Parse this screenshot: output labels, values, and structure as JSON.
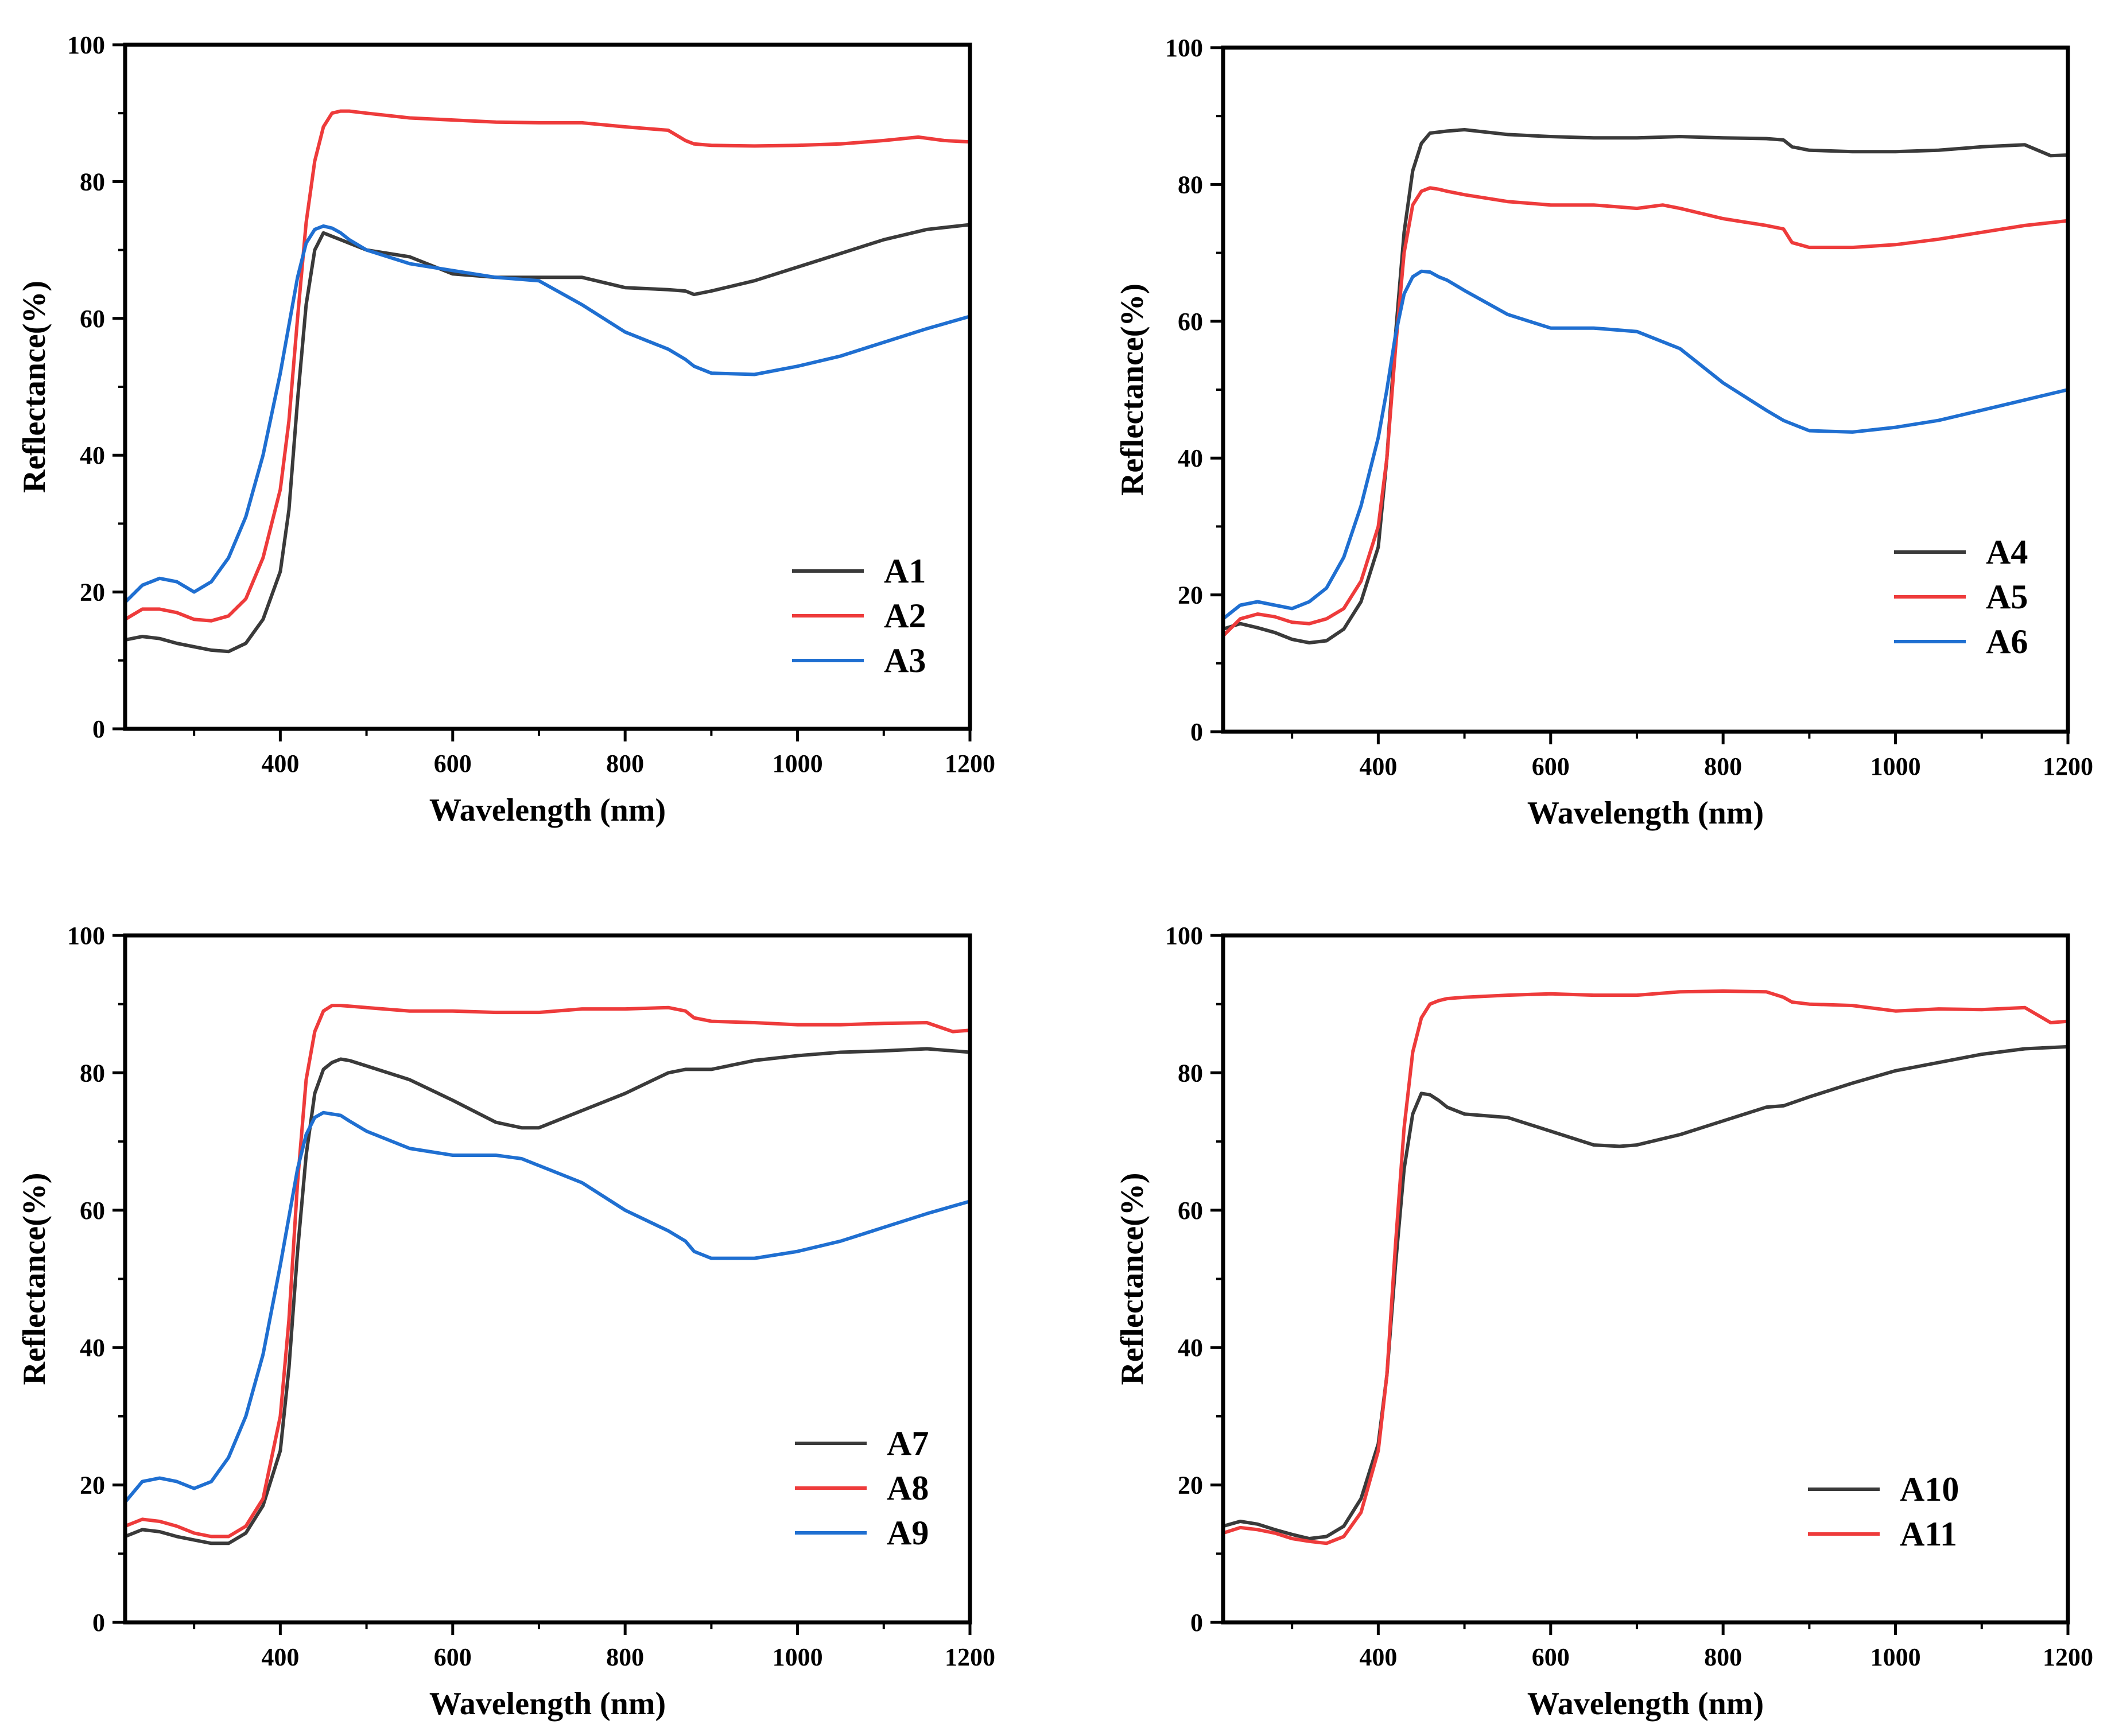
{
  "colors": {
    "black": "#3a3a3a",
    "red": "#ee3b3b",
    "blue": "#1f6fd1"
  },
  "chart_data": [
    {
      "type": "line",
      "xlabel": "Wavelength (nm)",
      "ylabel": "Reflectance(%)",
      "xlim": [
        220,
        1200
      ],
      "ylim": [
        0,
        100
      ],
      "xticks": [
        "400",
        "600",
        "800",
        "1000",
        "1200"
      ],
      "yticks": [
        "0",
        "20",
        "40",
        "60",
        "80",
        "100"
      ],
      "legend_position": "lower-right",
      "series": [
        {
          "name": "A1",
          "color": "black",
          "x": [
            220,
            240,
            260,
            280,
            300,
            320,
            340,
            360,
            380,
            400,
            410,
            420,
            430,
            440,
            450,
            460,
            470,
            480,
            500,
            550,
            600,
            650,
            700,
            750,
            800,
            850,
            870,
            880,
            900,
            950,
            1000,
            1050,
            1100,
            1150,
            1200
          ],
          "y": [
            13,
            13.5,
            13.2,
            12.5,
            12,
            11.5,
            11.3,
            12.5,
            16,
            23,
            32,
            48,
            62,
            70,
            72.5,
            72,
            71.5,
            71,
            70,
            69,
            66.5,
            66,
            66,
            66,
            64.5,
            64.2,
            64,
            63.5,
            64,
            65.5,
            67.5,
            69.5,
            71.5,
            73,
            73.7
          ]
        },
        {
          "name": "A2",
          "color": "red",
          "x": [
            220,
            240,
            260,
            280,
            300,
            320,
            340,
            360,
            380,
            400,
            410,
            420,
            430,
            440,
            450,
            460,
            470,
            480,
            500,
            550,
            600,
            650,
            700,
            750,
            800,
            850,
            870,
            880,
            900,
            950,
            1000,
            1050,
            1100,
            1140,
            1170,
            1200
          ],
          "y": [
            16,
            17.5,
            17.5,
            17,
            16,
            15.8,
            16.5,
            19,
            25,
            35,
            45,
            60,
            74,
            83,
            88,
            90,
            90.3,
            90.3,
            90,
            89.3,
            89,
            88.7,
            88.6,
            88.6,
            88,
            87.5,
            86,
            85.5,
            85.3,
            85.2,
            85.3,
            85.5,
            86,
            86.5,
            86,
            85.8
          ]
        },
        {
          "name": "A3",
          "color": "blue",
          "x": [
            220,
            240,
            260,
            280,
            300,
            320,
            340,
            360,
            380,
            400,
            410,
            420,
            430,
            440,
            450,
            460,
            470,
            480,
            500,
            550,
            600,
            650,
            700,
            750,
            800,
            850,
            870,
            880,
            900,
            950,
            1000,
            1050,
            1100,
            1150,
            1200
          ],
          "y": [
            18.5,
            21,
            22,
            21.5,
            20,
            21.5,
            25,
            31,
            40,
            52,
            59,
            66,
            71,
            73,
            73.5,
            73.2,
            72.5,
            71.5,
            70,
            68,
            67,
            66,
            65.5,
            62,
            58,
            55.5,
            54,
            53,
            52,
            51.8,
            53,
            54.5,
            56.5,
            58.5,
            60.3
          ]
        }
      ]
    },
    {
      "type": "line",
      "xlabel": "Wavelength (nm)",
      "ylabel": "Reflectance(%)",
      "xlim": [
        220,
        1200
      ],
      "ylim": [
        0,
        100
      ],
      "xticks": [
        "400",
        "600",
        "800",
        "1000",
        "1200"
      ],
      "yticks": [
        "0",
        "20",
        "40",
        "60",
        "80",
        "100"
      ],
      "legend_position": "upper-right",
      "series": [
        {
          "name": "A4",
          "color": "black",
          "x": [
            220,
            240,
            260,
            280,
            300,
            320,
            340,
            360,
            380,
            400,
            410,
            420,
            430,
            440,
            450,
            460,
            480,
            500,
            550,
            600,
            650,
            700,
            750,
            800,
            850,
            870,
            880,
            900,
            950,
            1000,
            1050,
            1100,
            1150,
            1180,
            1200
          ],
          "y": [
            15,
            15.8,
            15.2,
            14.5,
            13.5,
            13,
            13.3,
            15,
            19,
            27,
            40,
            58,
            73,
            82,
            86,
            87.5,
            87.8,
            88,
            87.3,
            87,
            86.8,
            86.8,
            87,
            86.8,
            86.7,
            86.5,
            85.5,
            85,
            84.8,
            84.8,
            85,
            85.5,
            85.8,
            84.2,
            84.3
          ]
        },
        {
          "name": "A5",
          "color": "red",
          "x": [
            220,
            240,
            260,
            280,
            300,
            320,
            340,
            360,
            380,
            400,
            410,
            420,
            430,
            440,
            450,
            460,
            470,
            480,
            500,
            550,
            600,
            650,
            700,
            730,
            750,
            800,
            850,
            870,
            880,
            900,
            950,
            1000,
            1050,
            1100,
            1150,
            1200
          ],
          "y": [
            14,
            16.5,
            17.2,
            16.8,
            16,
            15.8,
            16.5,
            18,
            22,
            30,
            40,
            56,
            70,
            77,
            79,
            79.5,
            79.3,
            79,
            78.5,
            77.5,
            77,
            77,
            76.5,
            77,
            76.5,
            75,
            74,
            73.5,
            71.5,
            70.8,
            70.8,
            71.2,
            72,
            73,
            74,
            74.7
          ]
        },
        {
          "name": "A6",
          "color": "blue",
          "x": [
            220,
            240,
            260,
            280,
            300,
            320,
            340,
            360,
            380,
            400,
            410,
            420,
            430,
            440,
            450,
            460,
            470,
            480,
            500,
            550,
            600,
            650,
            700,
            750,
            800,
            850,
            870,
            880,
            900,
            950,
            1000,
            1050,
            1100,
            1150,
            1200
          ],
          "y": [
            16.5,
            18.5,
            19,
            18.5,
            18,
            19,
            21,
            25.5,
            33,
            43,
            50,
            58,
            64,
            66.5,
            67.3,
            67.2,
            66.5,
            66,
            64.5,
            61,
            59,
            59,
            58.5,
            56,
            51,
            47,
            45.5,
            45,
            44,
            43.8,
            44.5,
            45.5,
            47,
            48.5,
            50
          ]
        }
      ]
    },
    {
      "type": "line",
      "xlabel": "Wavelength (nm)",
      "ylabel": "Reflectance(%)",
      "xlim": [
        220,
        1200
      ],
      "ylim": [
        0,
        100
      ],
      "xticks": [
        "400",
        "600",
        "800",
        "1000",
        "1200"
      ],
      "yticks": [
        "0",
        "20",
        "40",
        "60",
        "80",
        "100"
      ],
      "legend_position": "lower-right",
      "series": [
        {
          "name": "A7",
          "color": "black",
          "x": [
            220,
            240,
            260,
            280,
            300,
            320,
            340,
            360,
            380,
            400,
            410,
            420,
            430,
            440,
            450,
            460,
            470,
            480,
            500,
            550,
            600,
            650,
            680,
            700,
            750,
            800,
            850,
            870,
            900,
            950,
            1000,
            1050,
            1100,
            1150,
            1200
          ],
          "y": [
            12.5,
            13.5,
            13.2,
            12.5,
            12,
            11.5,
            11.5,
            13,
            17,
            25,
            37,
            54,
            68,
            77,
            80.5,
            81.5,
            82,
            81.8,
            81,
            79,
            76,
            72.8,
            72,
            72,
            74.5,
            77,
            80,
            80.5,
            80.5,
            81.8,
            82.5,
            83,
            83.2,
            83.5,
            83
          ]
        },
        {
          "name": "A8",
          "color": "red",
          "x": [
            220,
            240,
            260,
            280,
            300,
            320,
            340,
            360,
            380,
            400,
            410,
            420,
            430,
            440,
            450,
            460,
            470,
            480,
            500,
            550,
            600,
            650,
            700,
            750,
            800,
            850,
            870,
            880,
            900,
            950,
            1000,
            1050,
            1100,
            1150,
            1180,
            1200
          ],
          "y": [
            14,
            15,
            14.7,
            14,
            13,
            12.5,
            12.5,
            14,
            18,
            30,
            44,
            64,
            79,
            86,
            89,
            89.8,
            89.8,
            89.7,
            89.5,
            89,
            89,
            88.8,
            88.8,
            89.3,
            89.3,
            89.5,
            89,
            88,
            87.5,
            87.3,
            87,
            87,
            87.2,
            87.3,
            86,
            86.2
          ]
        },
        {
          "name": "A9",
          "color": "blue",
          "x": [
            220,
            240,
            260,
            280,
            300,
            320,
            340,
            360,
            380,
            400,
            410,
            420,
            430,
            440,
            450,
            460,
            470,
            480,
            500,
            550,
            600,
            650,
            680,
            700,
            750,
            800,
            850,
            870,
            880,
            900,
            950,
            1000,
            1050,
            1100,
            1150,
            1200
          ],
          "y": [
            17.5,
            20.5,
            21,
            20.5,
            19.5,
            20.5,
            24,
            30,
            39,
            52,
            59,
            66,
            71,
            73.5,
            74.2,
            74,
            73.8,
            73,
            71.5,
            69,
            68,
            68,
            67.5,
            66.5,
            64,
            60,
            57,
            55.5,
            54,
            53,
            53,
            54,
            55.5,
            57.5,
            59.5,
            61.3
          ]
        }
      ]
    },
    {
      "type": "line",
      "xlabel": "Wavelength (nm)",
      "ylabel": "Reflectance(%)",
      "xlim": [
        220,
        1200
      ],
      "ylim": [
        0,
        100
      ],
      "xticks": [
        "400",
        "600",
        "800",
        "1000",
        "1200"
      ],
      "yticks": [
        "0",
        "20",
        "40",
        "60",
        "80",
        "100"
      ],
      "legend_position": "lower-right",
      "series": [
        {
          "name": "A10",
          "color": "black",
          "x": [
            220,
            240,
            260,
            280,
            300,
            320,
            340,
            360,
            380,
            400,
            410,
            420,
            430,
            440,
            450,
            460,
            470,
            480,
            500,
            550,
            600,
            650,
            680,
            700,
            750,
            800,
            850,
            870,
            900,
            950,
            1000,
            1050,
            1100,
            1150,
            1200
          ],
          "y": [
            14,
            14.7,
            14.3,
            13.5,
            12.8,
            12.2,
            12.5,
            14,
            18,
            26,
            36,
            52,
            66,
            74,
            77,
            76.8,
            76,
            75,
            74,
            73.5,
            71.5,
            69.5,
            69.3,
            69.5,
            71,
            73,
            75,
            75.2,
            76.5,
            78.5,
            80.3,
            81.5,
            82.7,
            83.5,
            83.8
          ]
        },
        {
          "name": "A11",
          "color": "red",
          "x": [
            220,
            240,
            260,
            280,
            300,
            320,
            340,
            360,
            380,
            400,
            410,
            420,
            430,
            440,
            450,
            460,
            470,
            480,
            500,
            550,
            600,
            650,
            700,
            750,
            800,
            850,
            870,
            880,
            900,
            950,
            1000,
            1050,
            1100,
            1150,
            1180,
            1200
          ],
          "y": [
            13,
            13.8,
            13.5,
            13,
            12.2,
            11.8,
            11.5,
            12.5,
            16,
            25,
            36,
            55,
            72,
            83,
            88,
            90,
            90.5,
            90.8,
            91,
            91.3,
            91.5,
            91.3,
            91.3,
            91.8,
            91.9,
            91.8,
            91,
            90.3,
            90,
            89.8,
            89,
            89.3,
            89.2,
            89.5,
            87.3,
            87.5
          ]
        }
      ]
    }
  ]
}
